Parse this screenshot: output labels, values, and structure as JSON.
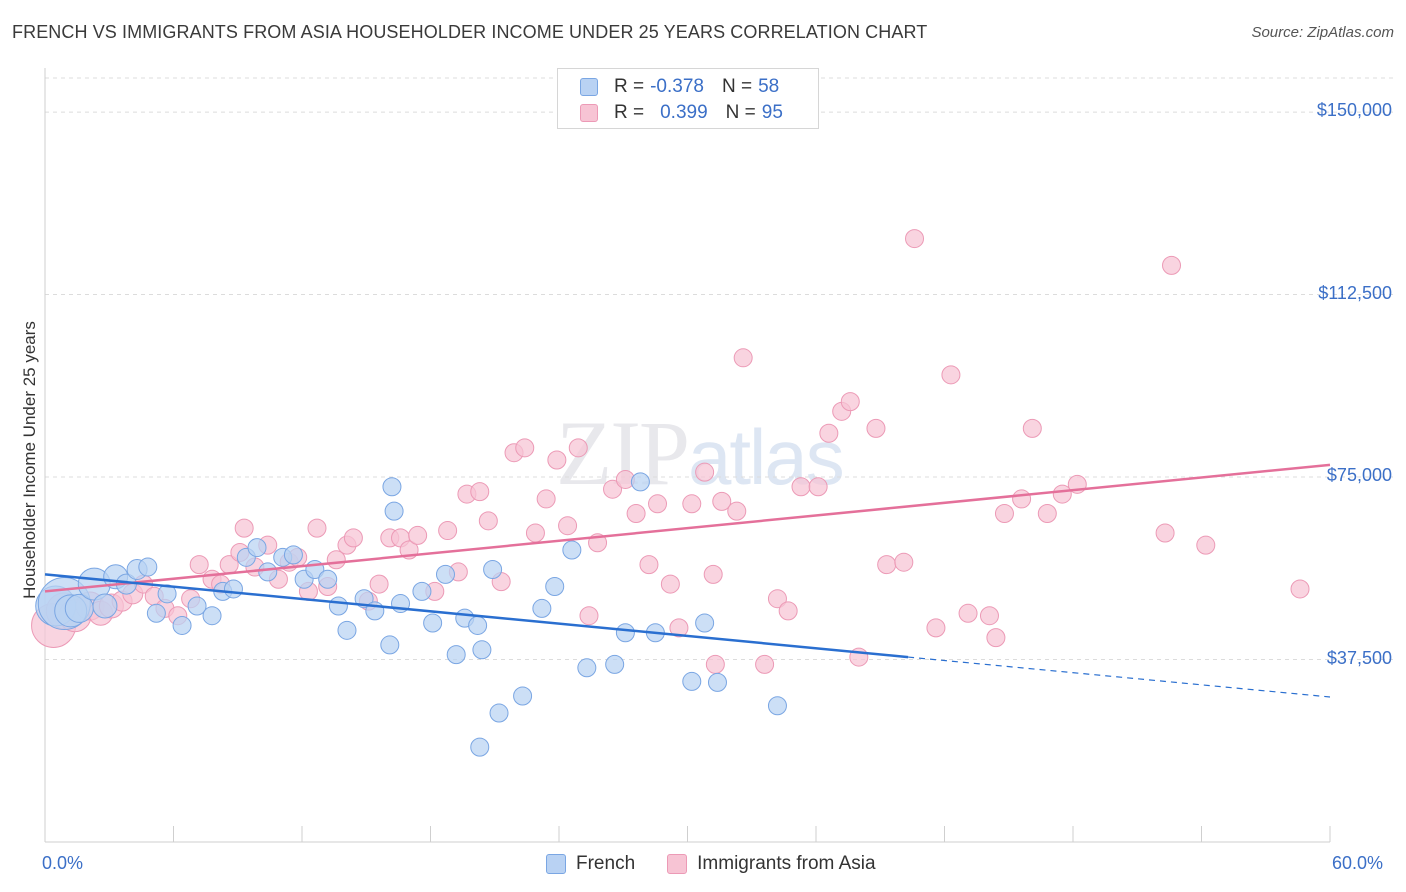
{
  "title": "FRENCH VS IMMIGRANTS FROM ASIA HOUSEHOLDER INCOME UNDER 25 YEARS CORRELATION CHART",
  "source": "Source: ZipAtlas.com",
  "watermark": {
    "zip": "ZIP",
    "atlas": "atlas"
  },
  "legend": {
    "r_label": "R =",
    "n_label": "N =",
    "french": {
      "r": "-0.378",
      "n": "58"
    },
    "asia": {
      "r": "0.399",
      "n": "95"
    }
  },
  "colors": {
    "french_fill": "#b9d2f3",
    "french_stroke": "#7aa6e3",
    "french_line": "#2a6fd0",
    "asia_fill": "#f7c4d4",
    "asia_stroke": "#ec9ab6",
    "asia_line": "#e4709a",
    "tick_text": "#3b6fc7",
    "grid": "#dcdcdc"
  },
  "chart_data": {
    "type": "scatter",
    "title": "FRENCH VS IMMIGRANTS FROM ASIA HOUSEHOLDER INCOME UNDER 25 YEARS CORRELATION CHART",
    "xlabel": "",
    "ylabel": "Householder Income Under 25 years",
    "xlim": [
      0,
      60
    ],
    "ylim": [
      0,
      157000
    ],
    "x_tick_labels": [
      "0.0%",
      "60.0%"
    ],
    "y_ticks": [
      37500,
      75000,
      112500,
      150000
    ],
    "y_tick_labels": [
      "$37,500",
      "$75,000",
      "$112,500",
      "$150,000"
    ],
    "grid": true,
    "legend_position": "top-center",
    "series": [
      {
        "name": "French",
        "r": -0.378,
        "n": 58,
        "trend": {
          "x0": 0,
          "y0": 55000,
          "x1": 40.3,
          "y1": 38000,
          "dashed_to_x": 60,
          "dashed_to_y": 29800
        },
        "points": [
          [
            0.5,
            48500,
            20
          ],
          [
            0.9,
            49000,
            26
          ],
          [
            1.2,
            47500,
            16
          ],
          [
            1.6,
            48000,
            14
          ],
          [
            2.3,
            53000,
            16
          ],
          [
            2.8,
            48500,
            12
          ],
          [
            3.3,
            54500,
            12
          ],
          [
            3.8,
            53000,
            10
          ],
          [
            4.3,
            56000,
            10
          ],
          [
            4.8,
            56500,
            9
          ],
          [
            5.2,
            47000,
            9
          ],
          [
            5.7,
            51000,
            9
          ],
          [
            6.4,
            44500,
            9
          ],
          [
            7.1,
            48500,
            9
          ],
          [
            7.8,
            46500,
            9
          ],
          [
            8.3,
            51500,
            9
          ],
          [
            8.8,
            52000,
            9
          ],
          [
            9.4,
            58500,
            9
          ],
          [
            9.9,
            60500,
            9
          ],
          [
            10.4,
            55500,
            9
          ],
          [
            11.1,
            58500,
            9
          ],
          [
            11.6,
            59000,
            9
          ],
          [
            12.1,
            54000,
            9
          ],
          [
            12.6,
            56000,
            9
          ],
          [
            13.2,
            54000,
            9
          ],
          [
            13.7,
            48500,
            9
          ],
          [
            14.1,
            43500,
            9
          ],
          [
            14.9,
            50000,
            9
          ],
          [
            15.4,
            47500,
            9
          ],
          [
            16.1,
            40500,
            9
          ],
          [
            16.6,
            49000,
            9
          ],
          [
            16.3,
            68000,
            9
          ],
          [
            16.2,
            73000,
            9
          ],
          [
            17.6,
            51500,
            9
          ],
          [
            18.1,
            45000,
            9
          ],
          [
            18.7,
            55000,
            9
          ],
          [
            19.2,
            38500,
            9
          ],
          [
            19.6,
            46000,
            9
          ],
          [
            20.2,
            44500,
            9
          ],
          [
            20.4,
            39500,
            9
          ],
          [
            20.9,
            56000,
            9
          ],
          [
            21.2,
            26500,
            9
          ],
          [
            22.3,
            30000,
            9
          ],
          [
            23.2,
            48000,
            9
          ],
          [
            23.8,
            52500,
            9
          ],
          [
            25.3,
            35800,
            9
          ],
          [
            26.6,
            36500,
            9
          ],
          [
            27.1,
            43000,
            9
          ],
          [
            27.8,
            74000,
            9
          ],
          [
            28.5,
            43000,
            9
          ],
          [
            30.2,
            33000,
            9
          ],
          [
            30.8,
            45000,
            9
          ],
          [
            31.4,
            32800,
            9
          ],
          [
            34.2,
            28000,
            9
          ],
          [
            20.3,
            19500,
            9
          ],
          [
            24.6,
            60000,
            9
          ],
          [
            22.2,
            24000,
            0
          ],
          [
            6.0,
            50000,
            0
          ]
        ]
      },
      {
        "name": "Immigrants from Asia",
        "r": 0.399,
        "n": 95,
        "trend": {
          "x0": 0,
          "y0": 51500,
          "x1": 60,
          "y1": 77500
        },
        "points": [
          [
            0.4,
            44500,
            22
          ],
          [
            0.9,
            47500,
            18
          ],
          [
            1.4,
            46500,
            16
          ],
          [
            2.1,
            48500,
            14
          ],
          [
            2.6,
            47000,
            12
          ],
          [
            3.1,
            48500,
            12
          ],
          [
            3.6,
            49500,
            10
          ],
          [
            4.1,
            51000,
            10
          ],
          [
            4.6,
            53000,
            9
          ],
          [
            5.1,
            50500,
            9
          ],
          [
            5.6,
            48000,
            9
          ],
          [
            6.2,
            46500,
            9
          ],
          [
            6.8,
            50000,
            9
          ],
          [
            7.2,
            57000,
            9
          ],
          [
            7.8,
            54000,
            9
          ],
          [
            8.2,
            53000,
            9
          ],
          [
            8.6,
            57000,
            9
          ],
          [
            9.1,
            59500,
            9
          ],
          [
            9.3,
            64500,
            9
          ],
          [
            9.8,
            56500,
            9
          ],
          [
            10.4,
            61000,
            9
          ],
          [
            10.9,
            54000,
            9
          ],
          [
            11.4,
            57500,
            9
          ],
          [
            11.8,
            58500,
            9
          ],
          [
            12.3,
            51500,
            9
          ],
          [
            12.7,
            64500,
            9
          ],
          [
            13.2,
            52500,
            9
          ],
          [
            13.6,
            58000,
            9
          ],
          [
            14.1,
            61000,
            9
          ],
          [
            14.4,
            62500,
            9
          ],
          [
            15.1,
            49500,
            9
          ],
          [
            15.6,
            53000,
            9
          ],
          [
            16.1,
            62500,
            9
          ],
          [
            16.6,
            62500,
            9
          ],
          [
            17.0,
            60000,
            9
          ],
          [
            17.4,
            63000,
            9
          ],
          [
            18.2,
            51500,
            9
          ],
          [
            18.8,
            64000,
            9
          ],
          [
            19.3,
            55500,
            9
          ],
          [
            19.7,
            71500,
            9
          ],
          [
            20.3,
            72000,
            9
          ],
          [
            20.7,
            66000,
            9
          ],
          [
            21.3,
            53500,
            9
          ],
          [
            21.9,
            80000,
            9
          ],
          [
            22.4,
            81000,
            9
          ],
          [
            22.9,
            63500,
            9
          ],
          [
            23.4,
            70500,
            9
          ],
          [
            23.9,
            78500,
            9
          ],
          [
            24.4,
            65000,
            9
          ],
          [
            24.9,
            81000,
            9
          ],
          [
            25.4,
            46500,
            9
          ],
          [
            25.8,
            61500,
            9
          ],
          [
            26.5,
            72500,
            9
          ],
          [
            27.1,
            74500,
            9
          ],
          [
            27.6,
            67500,
            9
          ],
          [
            28.2,
            57000,
            9
          ],
          [
            28.6,
            69500,
            9
          ],
          [
            29.2,
            53000,
            9
          ],
          [
            29.6,
            44000,
            9
          ],
          [
            30.2,
            69500,
            9
          ],
          [
            30.8,
            76000,
            9
          ],
          [
            31.2,
            55000,
            9
          ],
          [
            31.6,
            70000,
            9
          ],
          [
            31.3,
            36500,
            9
          ],
          [
            32.3,
            68000,
            9
          ],
          [
            32.6,
            99500,
            9
          ],
          [
            33.6,
            36500,
            9
          ],
          [
            34.2,
            50000,
            9
          ],
          [
            34.7,
            47500,
            9
          ],
          [
            35.3,
            73000,
            9
          ],
          [
            36.1,
            73000,
            9
          ],
          [
            36.6,
            84000,
            9
          ],
          [
            37.2,
            88500,
            9
          ],
          [
            37.6,
            90500,
            9
          ],
          [
            38.0,
            38000,
            9
          ],
          [
            38.8,
            85000,
            9
          ],
          [
            39.3,
            57000,
            9
          ],
          [
            40.1,
            57500,
            9
          ],
          [
            40.6,
            124000,
            9
          ],
          [
            41.6,
            44000,
            9
          ],
          [
            42.3,
            96000,
            9
          ],
          [
            43.1,
            47000,
            9
          ],
          [
            44.1,
            46500,
            9
          ],
          [
            44.4,
            42000,
            9
          ],
          [
            44.8,
            67500,
            9
          ],
          [
            45.6,
            70500,
            9
          ],
          [
            46.1,
            85000,
            9
          ],
          [
            46.8,
            67500,
            9
          ],
          [
            47.5,
            71500,
            9
          ],
          [
            48.2,
            73500,
            9
          ],
          [
            52.3,
            63500,
            9
          ],
          [
            52.6,
            118500,
            9
          ],
          [
            54.2,
            61000,
            9
          ],
          [
            58.6,
            52000,
            9
          ],
          [
            28.1,
            75000,
            0
          ]
        ]
      }
    ]
  },
  "axes": {
    "ylabel": "Householder Income Under 25 years",
    "x_left": "0.0%",
    "x_right": "60.0%",
    "y_ticks": [
      "$37,500",
      "$75,000",
      "$112,500",
      "$150,000"
    ]
  },
  "bottom_legend": {
    "french": "French",
    "asia": "Immigrants from Asia"
  }
}
